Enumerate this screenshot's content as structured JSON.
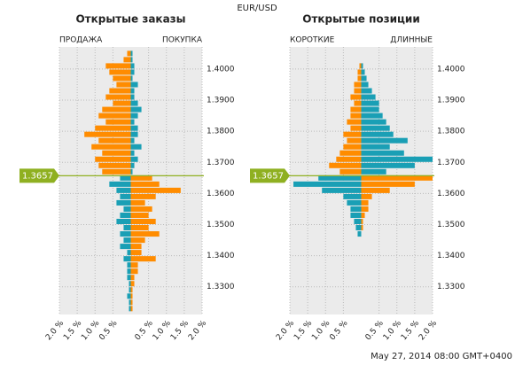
{
  "title": "EUR/USD",
  "timestamp": "May 27, 2014 08:00 GMT+0400",
  "current_price": 1.3657,
  "chart_data": [
    {
      "type": "bar",
      "title": "Открытые заказы",
      "prices": [
        1.405,
        1.403,
        1.401,
        1.399,
        1.397,
        1.395,
        1.393,
        1.391,
        1.389,
        1.387,
        1.385,
        1.383,
        1.381,
        1.379,
        1.377,
        1.375,
        1.373,
        1.371,
        1.369,
        1.367,
        1.365,
        1.363,
        1.361,
        1.359,
        1.357,
        1.355,
        1.353,
        1.351,
        1.349,
        1.347,
        1.345,
        1.343,
        1.341,
        1.339,
        1.337,
        1.335,
        1.333,
        1.331,
        1.329,
        1.327,
        1.325,
        1.323
      ],
      "series": [
        {
          "name": "ПРОДАЖА",
          "side": "left",
          "color_above": "#ff8c00",
          "color_below": "#1a9fb5",
          "values": [
            0.1,
            0.2,
            0.7,
            0.6,
            0.5,
            0.4,
            0.6,
            0.7,
            0.5,
            0.8,
            0.9,
            0.7,
            1.0,
            1.3,
            0.9,
            1.1,
            0.8,
            1.0,
            0.9,
            0.8,
            0.3,
            0.6,
            0.4,
            0.3,
            0.4,
            0.2,
            0.3,
            0.4,
            0.2,
            0.3,
            0.2,
            0.3,
            0.1,
            0.2,
            0.1,
            0.1,
            0.1,
            0.05,
            0.05,
            0.1,
            0.05,
            0.05
          ]
        },
        {
          "name": "ПОКУПКА",
          "side": "right",
          "color_above": "#1a9fb5",
          "color_below": "#ff8c00",
          "values": [
            0.05,
            0.05,
            0.1,
            0.1,
            0.05,
            0.2,
            0.1,
            0.1,
            0.2,
            0.3,
            0.2,
            0.1,
            0.2,
            0.2,
            0.1,
            0.3,
            0.1,
            0.2,
            0.1,
            0.05,
            0.6,
            0.8,
            1.4,
            0.7,
            0.4,
            0.6,
            0.5,
            0.7,
            0.5,
            0.8,
            0.4,
            0.3,
            0.3,
            0.7,
            0.2,
            0.2,
            0.1,
            0.1,
            0.05,
            0.05,
            0.05,
            0.05
          ]
        }
      ],
      "xlim": [
        -2,
        2
      ],
      "xticks": [
        {
          "value": -2,
          "label": "2.0 %"
        },
        {
          "value": -1.5,
          "label": "1.5 %"
        },
        {
          "value": -1,
          "label": "1.0 %"
        },
        {
          "value": -0.5,
          "label": "0.5 %"
        },
        {
          "value": 0.5,
          "label": "0.5 %"
        },
        {
          "value": 1,
          "label": "1.0 %"
        },
        {
          "value": 1.5,
          "label": "1.5 %"
        },
        {
          "value": 2,
          "label": "2.0 %"
        }
      ],
      "ylim": [
        1.3211,
        1.4071
      ],
      "yticks": [
        {
          "value": 1.4,
          "label": "1.4000"
        },
        {
          "value": 1.39,
          "label": "1.3900"
        },
        {
          "value": 1.38,
          "label": "1.3800"
        },
        {
          "value": 1.37,
          "label": "1.3700"
        },
        {
          "value": 1.36,
          "label": "1.3600"
        },
        {
          "value": 1.35,
          "label": "1.3500"
        },
        {
          "value": 1.34,
          "label": "1.3400"
        },
        {
          "value": 1.33,
          "label": "1.3300"
        }
      ],
      "grid": true
    },
    {
      "type": "bar",
      "title": "Открытые позиции",
      "prices": [
        1.401,
        1.399,
        1.397,
        1.395,
        1.393,
        1.391,
        1.389,
        1.387,
        1.385,
        1.383,
        1.381,
        1.379,
        1.377,
        1.375,
        1.373,
        1.371,
        1.369,
        1.367,
        1.365,
        1.363,
        1.361,
        1.359,
        1.357,
        1.355,
        1.353,
        1.351,
        1.349,
        1.347
      ],
      "series": [
        {
          "name": "КОРОТКИЕ",
          "side": "left",
          "color_above": "#ff8c00",
          "color_below": "#1a9fb5",
          "values": [
            0.05,
            0.1,
            0.1,
            0.2,
            0.2,
            0.3,
            0.2,
            0.3,
            0.3,
            0.4,
            0.3,
            0.5,
            0.4,
            0.5,
            0.6,
            0.7,
            0.9,
            0.6,
            1.2,
            1.9,
            1.1,
            0.5,
            0.4,
            0.3,
            0.3,
            0.2,
            0.15,
            0.1
          ]
        },
        {
          "name": "ДЛИННЫЕ",
          "side": "right",
          "color_above": "#1a9fb5",
          "color_below": "#ff8c00",
          "values": [
            0.05,
            0.1,
            0.15,
            0.2,
            0.3,
            0.4,
            0.5,
            0.5,
            0.6,
            0.7,
            0.8,
            0.9,
            1.3,
            0.8,
            1.2,
            2.0,
            1.5,
            0.7,
            2.0,
            1.5,
            0.8,
            0.3,
            0.2,
            0.2,
            0.1,
            0.05,
            0.05,
            0
          ]
        }
      ],
      "xlim": [
        -2,
        2
      ],
      "xticks": [
        {
          "value": -2,
          "label": "2.0 %"
        },
        {
          "value": -1.5,
          "label": "1.5 %"
        },
        {
          "value": -1,
          "label": "1.0 %"
        },
        {
          "value": -0.5,
          "label": "0.5 %"
        },
        {
          "value": 0.5,
          "label": "0.5 %"
        },
        {
          "value": 1,
          "label": "1.0 %"
        },
        {
          "value": 1.5,
          "label": "1.5 %"
        },
        {
          "value": 2,
          "label": "2.0 %"
        }
      ],
      "ylim": [
        1.3211,
        1.4071
      ],
      "yticks": [
        {
          "value": 1.4,
          "label": "1.4000"
        },
        {
          "value": 1.39,
          "label": "1.3900"
        },
        {
          "value": 1.38,
          "label": "1.3800"
        },
        {
          "value": 1.37,
          "label": "1.3700"
        },
        {
          "value": 1.36,
          "label": "1.3600"
        },
        {
          "value": 1.35,
          "label": "1.3500"
        },
        {
          "value": 1.34,
          "label": "1.3400"
        },
        {
          "value": 1.33,
          "label": "1.3300"
        }
      ],
      "grid": true
    }
  ]
}
